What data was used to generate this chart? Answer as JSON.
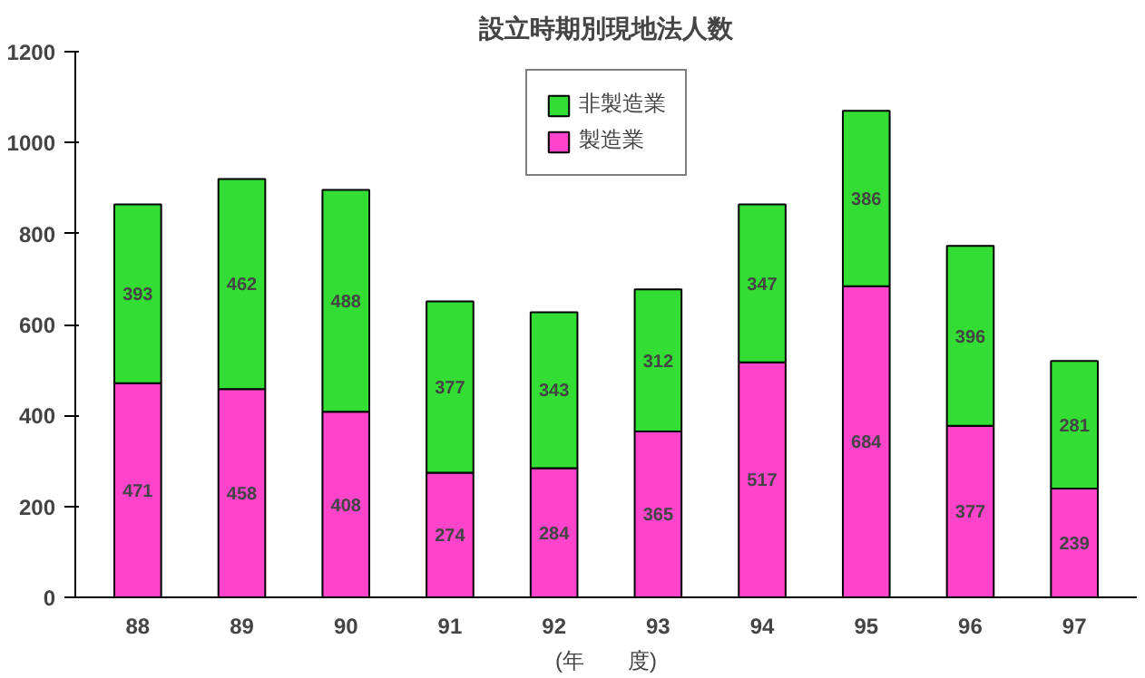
{
  "chart_data": {
    "type": "bar",
    "title": "設立時期別現地法人数",
    "xlabel": "(年　　度)",
    "stacked": true,
    "data_labels": true,
    "legend": "top",
    "grid": false,
    "categories": [
      "88",
      "89",
      "90",
      "91",
      "92",
      "93",
      "94",
      "95",
      "96",
      "97"
    ],
    "ylim": [
      0,
      1200
    ],
    "yticks": [
      0,
      200,
      400,
      600,
      800,
      1000,
      1200
    ],
    "series": [
      {
        "name": "製造業",
        "color": "#ff44cc",
        "values": [
          471,
          458,
          408,
          274,
          284,
          365,
          517,
          684,
          377,
          239
        ]
      },
      {
        "name": "非製造業",
        "color": "#33dd33",
        "values": [
          393,
          462,
          488,
          377,
          343,
          312,
          347,
          386,
          396,
          281
        ]
      }
    ]
  }
}
